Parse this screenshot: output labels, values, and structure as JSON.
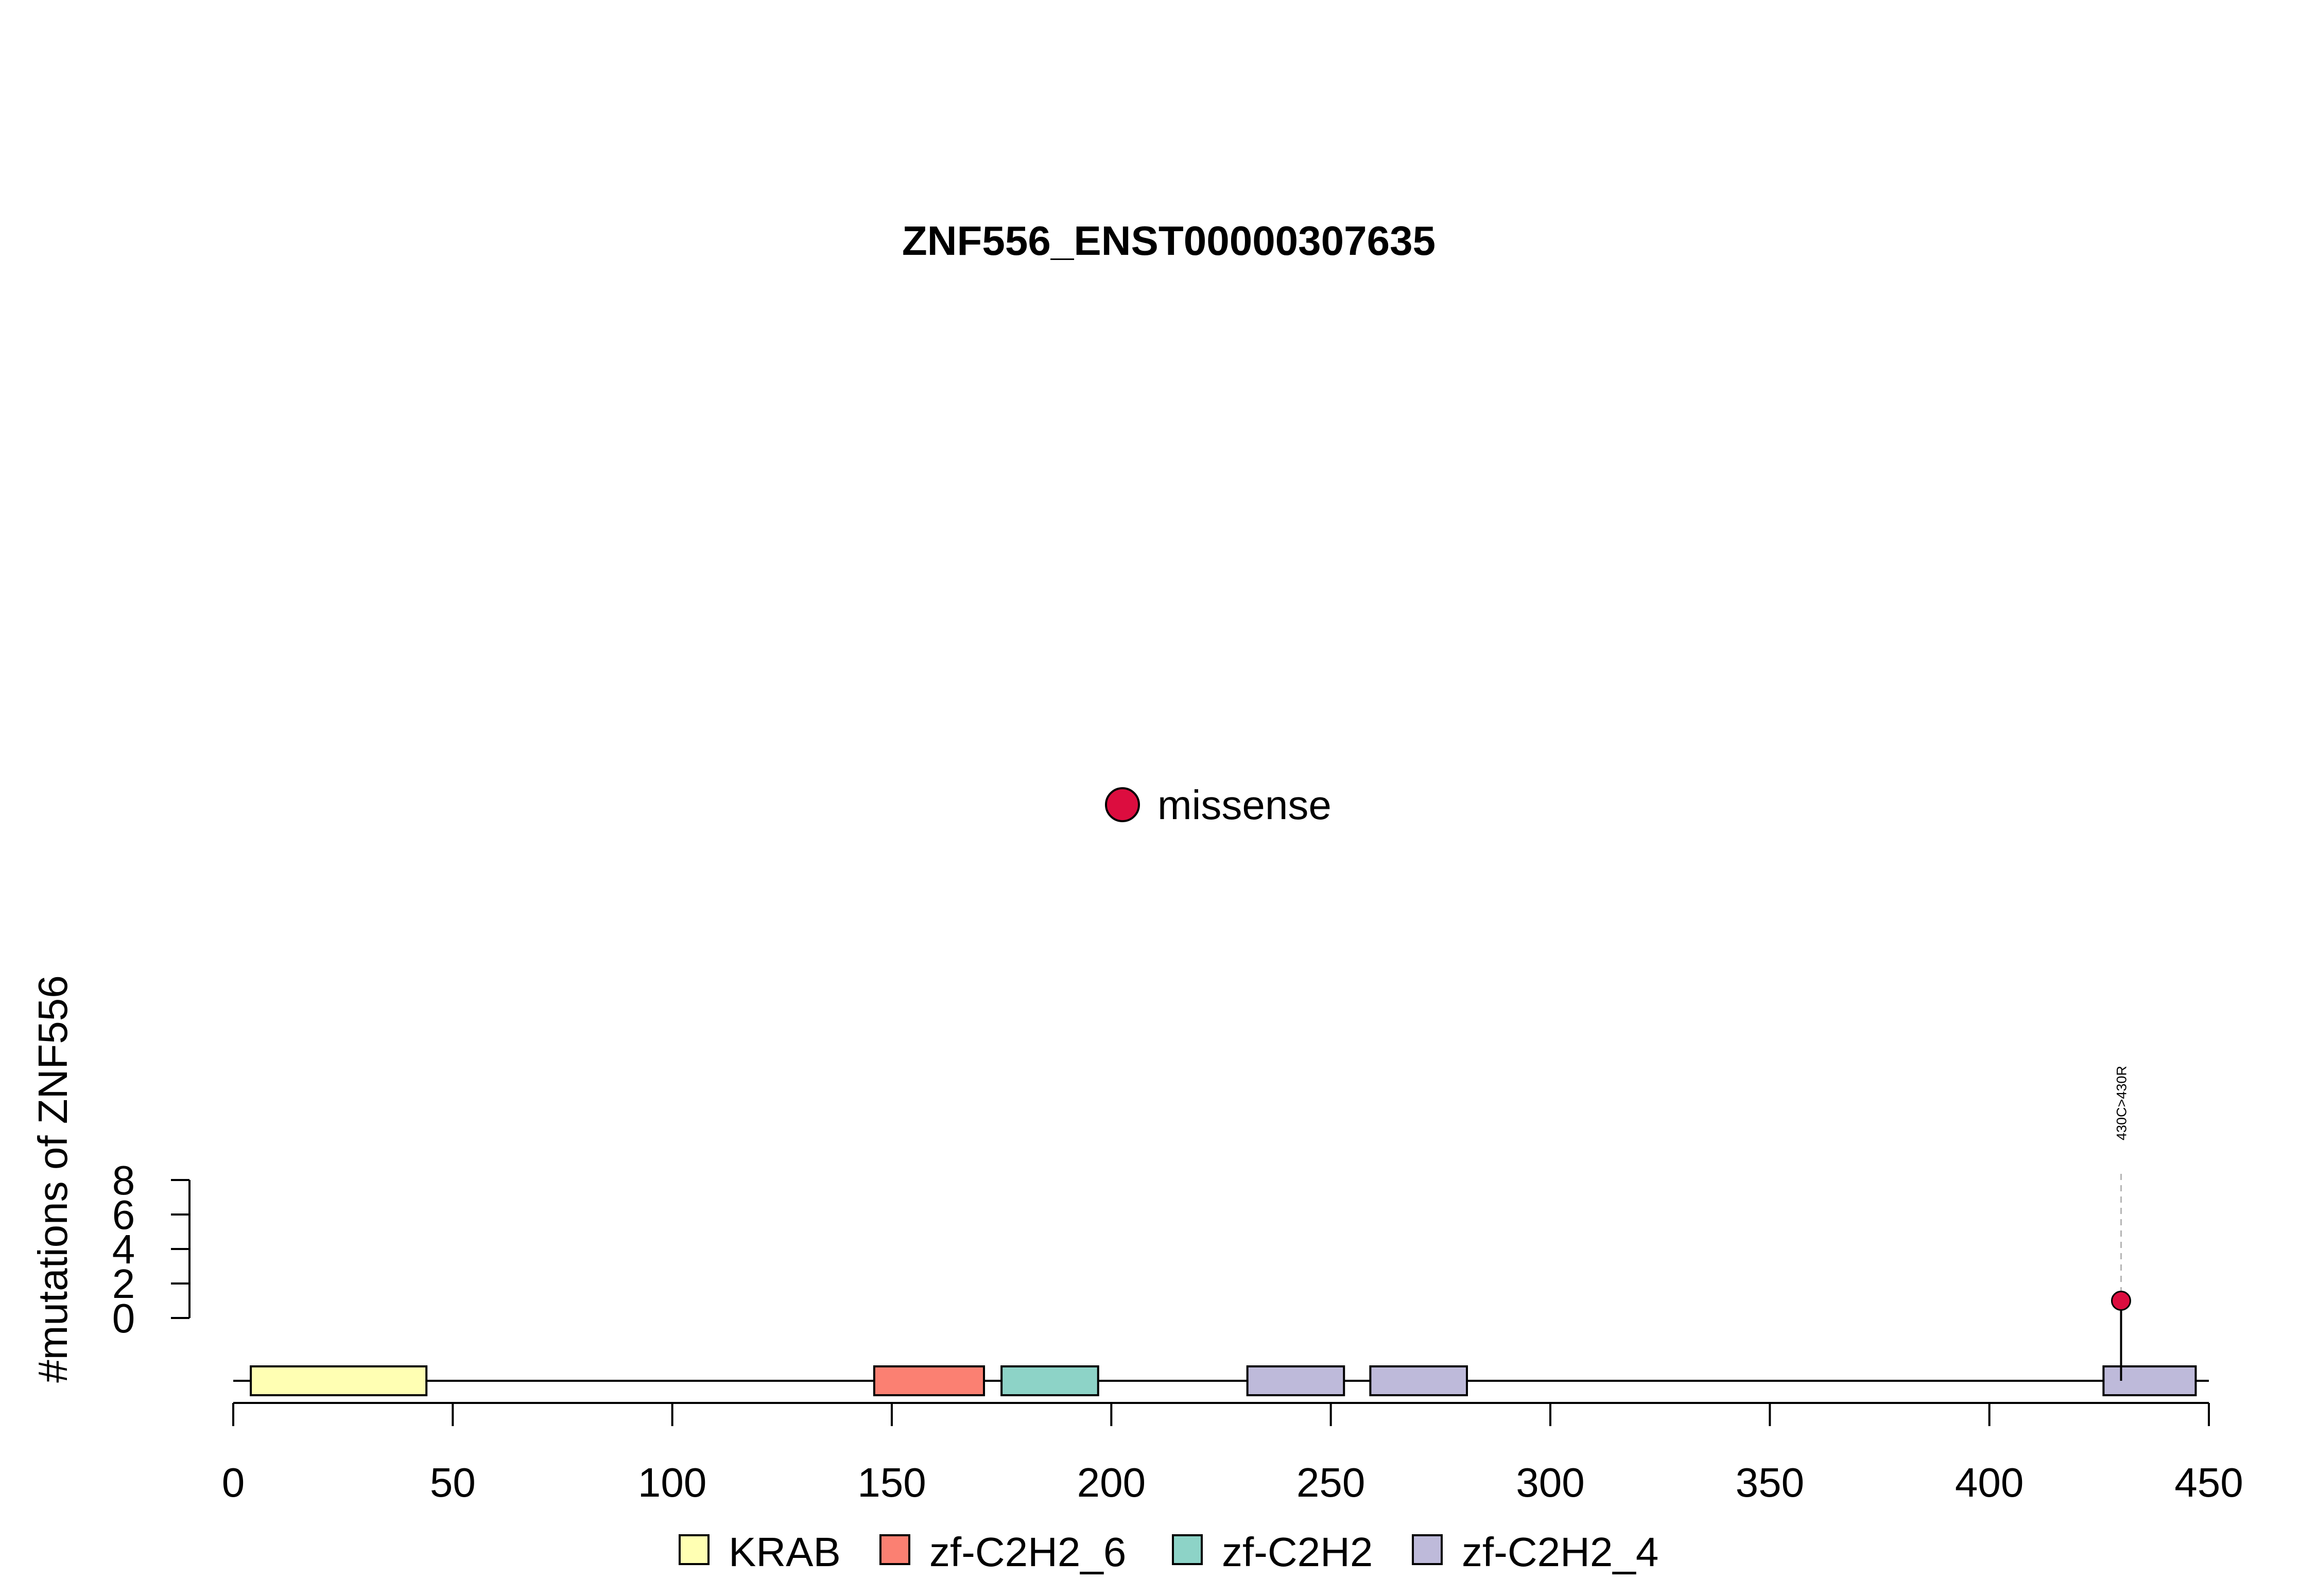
{
  "chart_data": {
    "type": "lollipop",
    "title": "ZNF556_ENST00000307635",
    "ylabel": "#mutations of ZNF556",
    "xlim": [
      0,
      450
    ],
    "ylim": [
      0,
      8
    ],
    "x_ticks": [
      0,
      50,
      100,
      150,
      200,
      250,
      300,
      350,
      400,
      450
    ],
    "y_ticks": [
      0,
      2,
      4,
      6,
      8
    ],
    "protein_length": 450,
    "domains": [
      {
        "name": "KRAB",
        "start": 4,
        "end": 44,
        "color": "#FFFFB3"
      },
      {
        "name": "zf-C2H2_6",
        "start": 146,
        "end": 171,
        "color": "#FB8072"
      },
      {
        "name": "zf-C2H2",
        "start": 175,
        "end": 197,
        "color": "#8DD3C7"
      },
      {
        "name": "zf-C2H2_4",
        "start": 231,
        "end": 253,
        "color": "#BEBADA"
      },
      {
        "name": "zf-C2H2_4",
        "start": 259,
        "end": 281,
        "color": "#BEBADA"
      },
      {
        "name": "zf-C2H2_4",
        "start": 426,
        "end": 447,
        "color": "#BEBADA"
      }
    ],
    "mutations": [
      {
        "position": 430,
        "count": 1,
        "label": "430C>430R",
        "type": "missense"
      }
    ],
    "mutation_legend": [
      {
        "name": "missense",
        "color": "#DC0D3F"
      }
    ],
    "domain_legend": [
      {
        "name": "KRAB",
        "color": "#FFFFB3"
      },
      {
        "name": "zf-C2H2_6",
        "color": "#FB8072"
      },
      {
        "name": "zf-C2H2",
        "color": "#8DD3C7"
      },
      {
        "name": "zf-C2H2_4",
        "color": "#BEBADA"
      }
    ]
  }
}
